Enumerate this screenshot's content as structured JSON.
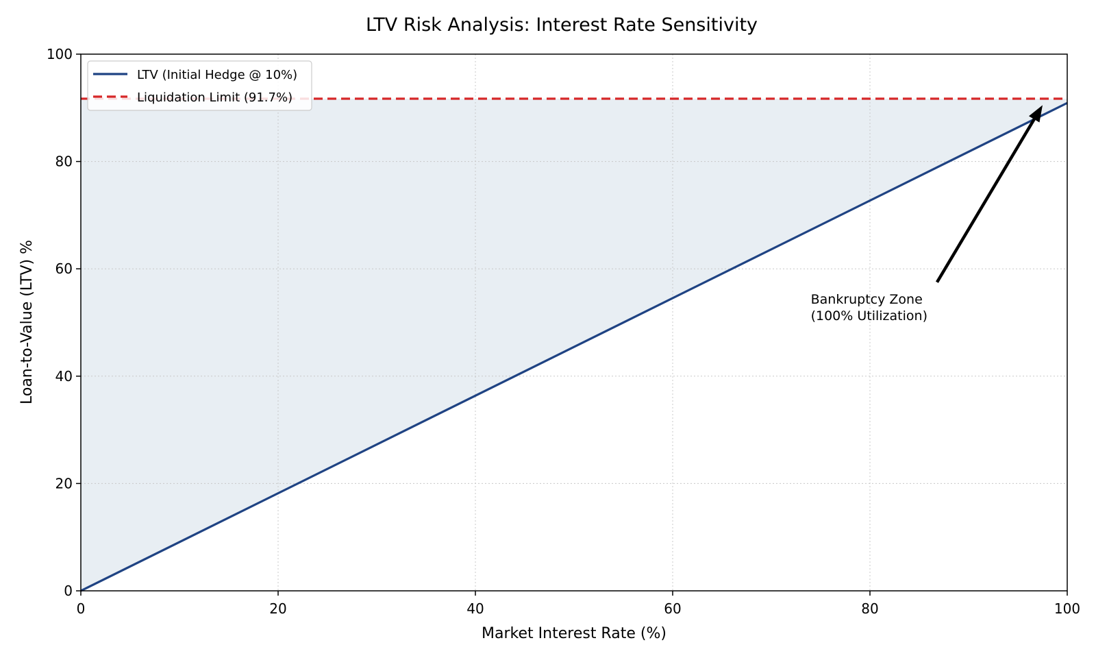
{
  "chart_data": {
    "type": "line",
    "title": "LTV Risk Analysis: Interest Rate Sensitivity",
    "xlabel": "Market Interest Rate (%)",
    "ylabel": "Loan-to-Value (LTV) %",
    "xlim": [
      0,
      100
    ],
    "ylim": [
      0,
      100
    ],
    "xticks": [
      0,
      20,
      40,
      60,
      80,
      100
    ],
    "yticks": [
      0,
      20,
      40,
      60,
      80,
      100
    ],
    "xtick_labels": [
      "0",
      "20",
      "40",
      "60",
      "80",
      "100"
    ],
    "ytick_labels": [
      "0",
      "20",
      "40",
      "60",
      "80",
      "100"
    ],
    "grid": true,
    "legend_position": "top-left",
    "series": [
      {
        "name": "LTV (Initial Hedge @ 10%)",
        "x": [
          0,
          100
        ],
        "y": [
          0,
          90.9
        ],
        "color": "#1f4383",
        "style": "solid",
        "fill_to": 91.7,
        "fill_color": "#e8eef3"
      },
      {
        "name": "Liquidation Limit (91.7%)",
        "x": [
          0,
          100
        ],
        "y": [
          91.7,
          91.7
        ],
        "color": "#d62728",
        "style": "dashed"
      }
    ],
    "annotations": [
      {
        "text_lines": [
          "Bankruptcy Zone",
          "(100% Utilization)"
        ],
        "xy": [
          97.5,
          90.5
        ],
        "xytext": [
          74,
          53.5
        ]
      }
    ]
  }
}
